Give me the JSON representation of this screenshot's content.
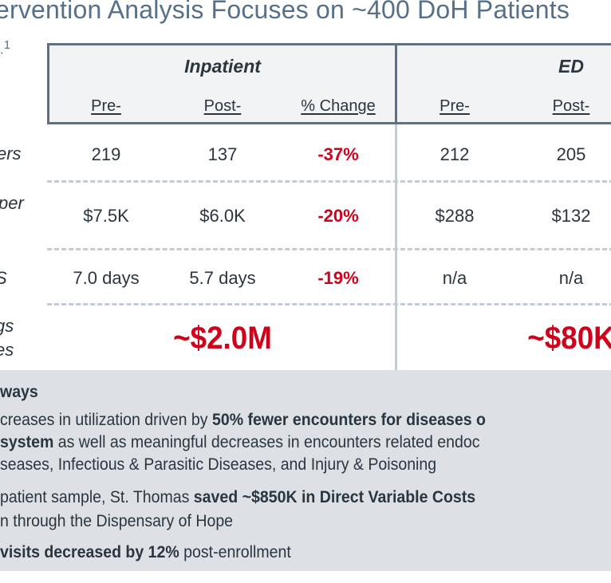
{
  "title": "ervention Analysis Focuses on ~400 DoH Patients",
  "footnote_mark": "1",
  "table": {
    "groups": [
      {
        "title": "Inpatient",
        "columns": [
          "Pre-",
          "Post-",
          "% Change"
        ]
      },
      {
        "title": "ED",
        "columns": [
          "Pre-",
          "Post-"
        ]
      }
    ],
    "rows": [
      {
        "label": "ers",
        "inpatient": {
          "pre": "219",
          "post": "137",
          "change": "-37%"
        },
        "ed": {
          "pre": "212",
          "post": "205"
        }
      },
      {
        "label": "per",
        "inpatient": {
          "pre": "$7.5K",
          "post": "$6.0K",
          "change": "-20%"
        },
        "ed": {
          "pre": "$288",
          "post": "$132"
        }
      },
      {
        "label": "S",
        "inpatient": {
          "pre": "7.0 days",
          "post": "5.7 days",
          "change": "-19%"
        },
        "ed": {
          "pre": "n/a",
          "post": "n/a"
        }
      }
    ],
    "savings": {
      "label_line1": "gs",
      "label_line2": "es",
      "inpatient": "~$2.0M",
      "ed": "~$80K"
    }
  },
  "takeaways": {
    "heading": "ways",
    "lines": [
      {
        "parts": [
          {
            "text": "creases in utilization driven by ",
            "bold": false
          },
          {
            "text": "50% fewer encounters for diseases o",
            "bold": true
          }
        ]
      },
      {
        "parts": [
          {
            "text": "system",
            "bold": true
          },
          {
            "text": " as well as meaningful decreases in encounters related endoc",
            "bold": false
          }
        ]
      },
      {
        "parts": [
          {
            "text": "seases, Infectious & Parasitic Diseases, and Injury & Poisoning",
            "bold": false
          }
        ]
      },
      {
        "parts": [
          {
            "text": "patient sample, St. Thomas ",
            "bold": false
          },
          {
            "text": "saved ~$850K in Direct Variable Costs",
            "bold": true
          }
        ]
      },
      {
        "parts": [
          {
            "text": "n through the Dispensary of Hope",
            "bold": false
          }
        ]
      },
      {
        "parts": [
          {
            "text": "visits decreased by 12%",
            "bold": true
          },
          {
            "text": " post-enrollment",
            "bold": false
          }
        ]
      }
    ]
  },
  "colors": {
    "accent_red": "#d0021b",
    "title_blue": "#56708a",
    "header_border": "#5e7183",
    "takeaway_bg": "#dde1e5"
  }
}
